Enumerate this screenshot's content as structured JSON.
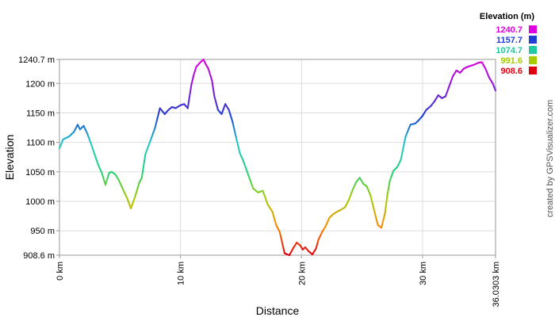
{
  "chart_data": {
    "type": "line",
    "xlabel": "Distance",
    "ylabel": "Elevation",
    "xlim": [
      0,
      36.0303
    ],
    "ylim": [
      908.6,
      1240.7
    ],
    "grid": true,
    "y_ticks": [
      {
        "value": 908.6,
        "label": "908.6 m"
      },
      {
        "value": 950,
        "label": "950 m"
      },
      {
        "value": 1000,
        "label": "1000 m"
      },
      {
        "value": 1050,
        "label": "1050 m"
      },
      {
        "value": 1100,
        "label": "1100 m"
      },
      {
        "value": 1150,
        "label": "1150 m"
      },
      {
        "value": 1200,
        "label": "1200 m"
      },
      {
        "value": 1240.7,
        "label": "1240.7 m"
      }
    ],
    "x_ticks": [
      {
        "value": 0,
        "label": "0 km"
      },
      {
        "value": 10,
        "label": "10 km"
      },
      {
        "value": 20,
        "label": "20 km"
      },
      {
        "value": 30,
        "label": "30 km"
      },
      {
        "value": 36.0303,
        "label": "36.0303 km"
      }
    ],
    "legend": {
      "title": "Elevation (m)",
      "placement": "top-right",
      "entries": [
        {
          "label": "1240.7",
          "color": "#e000e0"
        },
        {
          "label": "1157.7",
          "color": "#1f3fd6"
        },
        {
          "label": "1074.7",
          "color": "#22c9a0"
        },
        {
          "label": "991.6",
          "color": "#a6cc00"
        },
        {
          "label": "908.6",
          "color": "#e00010"
        }
      ]
    },
    "color_scale": {
      "min": 908.6,
      "max": 1240.7,
      "stops": [
        "#e00010",
        "#ff8a00",
        "#a6cc00",
        "#22d27a",
        "#22c9c9",
        "#1f3fd6",
        "#8a18d8",
        "#e000e0"
      ]
    },
    "series": [
      {
        "x": [
          0,
          0.3,
          0.8,
          1.2,
          1.5,
          1.7,
          2.0,
          2.3,
          2.6,
          2.9,
          3.2,
          3.5,
          3.8,
          4.1,
          4.3,
          4.6,
          4.9,
          5.3,
          5.6,
          5.9,
          6.2,
          6.4,
          6.6,
          6.8,
          7.1,
          7.5,
          7.9,
          8.3,
          8.7,
          9.0,
          9.3,
          9.6,
          10.0,
          10.3,
          10.6,
          10.9,
          11.1,
          11.3,
          11.6,
          11.9,
          12.1,
          12.3,
          12.6,
          12.8,
          13.1,
          13.4,
          13.7,
          14.0,
          14.3,
          14.6,
          14.9,
          15.2,
          15.6,
          16.0,
          16.4,
          16.8,
          17.2,
          17.6,
          17.9,
          18.2,
          18.4,
          18.6,
          18.8,
          19.0,
          19.3,
          19.6,
          19.9,
          20.1,
          20.3,
          20.6,
          20.9,
          21.2,
          21.4,
          21.7,
          22.0,
          22.3,
          22.6,
          22.9,
          23.2,
          23.6,
          23.9,
          24.2,
          24.5,
          24.8,
          25.1,
          25.4,
          25.7,
          26.0,
          26.3,
          26.6,
          26.9,
          27.1,
          27.3,
          27.6,
          27.9,
          28.2,
          28.6,
          29.0,
          29.4,
          29.7,
          30.0,
          30.3,
          30.7,
          31.0,
          31.3,
          31.6,
          31.9,
          32.2,
          32.5,
          32.8,
          33.1,
          33.4,
          33.7,
          34.0,
          34.3,
          34.6,
          34.9,
          35.2,
          35.5,
          35.8,
          36.0303
        ],
        "y": [
          1090,
          1105,
          1110,
          1118,
          1130,
          1122,
          1128,
          1115,
          1098,
          1080,
          1062,
          1048,
          1028,
          1048,
          1050,
          1046,
          1036,
          1018,
          1005,
          988,
          1005,
          1018,
          1032,
          1040,
          1080,
          1102,
          1125,
          1158,
          1148,
          1155,
          1160,
          1158,
          1163,
          1165,
          1158,
          1198,
          1215,
          1228,
          1235,
          1240.7,
          1232,
          1225,
          1205,
          1178,
          1155,
          1148,
          1165,
          1155,
          1135,
          1108,
          1082,
          1068,
          1045,
          1022,
          1015,
          1018,
          995,
          982,
          960,
          948,
          930,
          912,
          910,
          908.6,
          920,
          930,
          925,
          918,
          922,
          915,
          910,
          920,
          935,
          948,
          958,
          972,
          978,
          982,
          985,
          990,
          1002,
          1018,
          1032,
          1040,
          1030,
          1025,
          1010,
          985,
          960,
          955,
          980,
          1012,
          1035,
          1052,
          1058,
          1070,
          1110,
          1130,
          1132,
          1138,
          1145,
          1155,
          1162,
          1170,
          1180,
          1175,
          1178,
          1195,
          1212,
          1222,
          1218,
          1225,
          1228,
          1230,
          1232,
          1235,
          1236,
          1225,
          1210,
          1200,
          1188
        ]
      }
    ]
  },
  "credit_text": "created by GPSVisualizer.com"
}
